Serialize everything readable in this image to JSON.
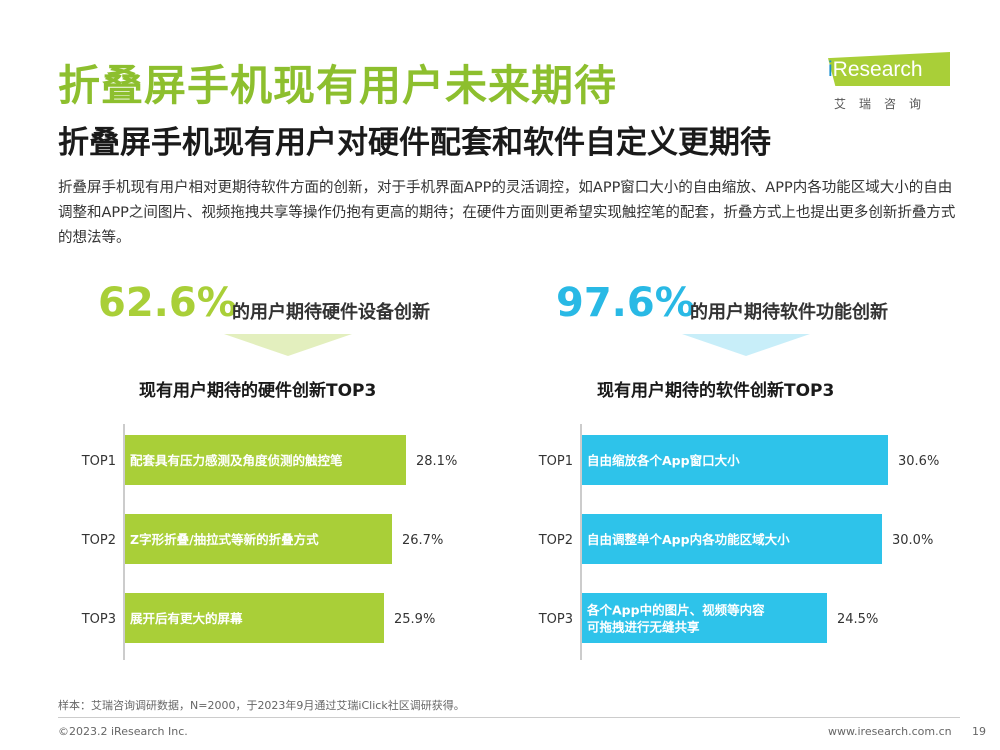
{
  "header": {
    "title": "折叠屏手机现有用户未来期待",
    "subtitle": "折叠屏手机现有用户对硬件配套和软件自定义更期待",
    "intro": "折叠屏手机现有用户相对更期待软件方面的创新，对于手机界面APP的灵活调控，如APP窗口大小的自由缩放、APP内各功能区域大小的自由调整和APP之间图片、视频拖拽共享等操作仍抱有更高的期待；在硬件方面则更希望实现触控笔的配套，折叠方式上也提出更多创新折叠方式的想法等。"
  },
  "logo": {
    "prefix": "i",
    "name": "Research",
    "cn": "艾瑞咨询"
  },
  "colors": {
    "green": "#a9cf38",
    "green_text": "#8dbf2e",
    "cyan": "#2ec3ea",
    "cyan_text": "#29b9e5",
    "green_arrow": "#e3efbe",
    "cyan_arrow": "#c8eef9"
  },
  "left_panel": {
    "pct": "62.6%",
    "pct_label": "的用户期待硬件设备创新"
  },
  "right_panel": {
    "pct": "97.6%",
    "pct_label": "的用户期待软件功能创新"
  },
  "chart_data": [
    {
      "type": "bar",
      "orientation": "horizontal",
      "title": "现有用户期待的硬件创新TOP3",
      "categories": [
        "TOP1",
        "TOP2",
        "TOP3"
      ],
      "bar_labels": [
        [
          "配套具有压力感测及角度侦测的触控笔"
        ],
        [
          "Z字形折叠/抽拉式等新的折叠方式"
        ],
        [
          "展开后有更大的屏幕"
        ]
      ],
      "values": [
        28.1,
        26.7,
        25.9
      ],
      "value_labels": [
        "28.1%",
        "26.7%",
        "25.9%"
      ],
      "unit": "%",
      "xlim": [
        0,
        35
      ]
    },
    {
      "type": "bar",
      "orientation": "horizontal",
      "title": "现有用户期待的软件创新TOP3",
      "categories": [
        "TOP1",
        "TOP2",
        "TOP3"
      ],
      "bar_labels": [
        [
          "自由缩放各个App窗口大小"
        ],
        [
          "自由调整单个App内各功能区域大小"
        ],
        [
          "各个App中的图片、视频等内容",
          "可拖拽进行无缝共享"
        ]
      ],
      "values": [
        30.6,
        30.0,
        24.5
      ],
      "value_labels": [
        "30.6%",
        "30.0%",
        "24.5%"
      ],
      "unit": "%",
      "xlim": [
        0,
        37
      ]
    }
  ],
  "footer": {
    "note": "样本：艾瑞咨询调研数据，N=2000，于2023年9月通过艾瑞iClick社区调研获得。",
    "copyright": "©2023.2 iResearch Inc.",
    "website": "www.iresearch.com.cn",
    "page": "19"
  }
}
